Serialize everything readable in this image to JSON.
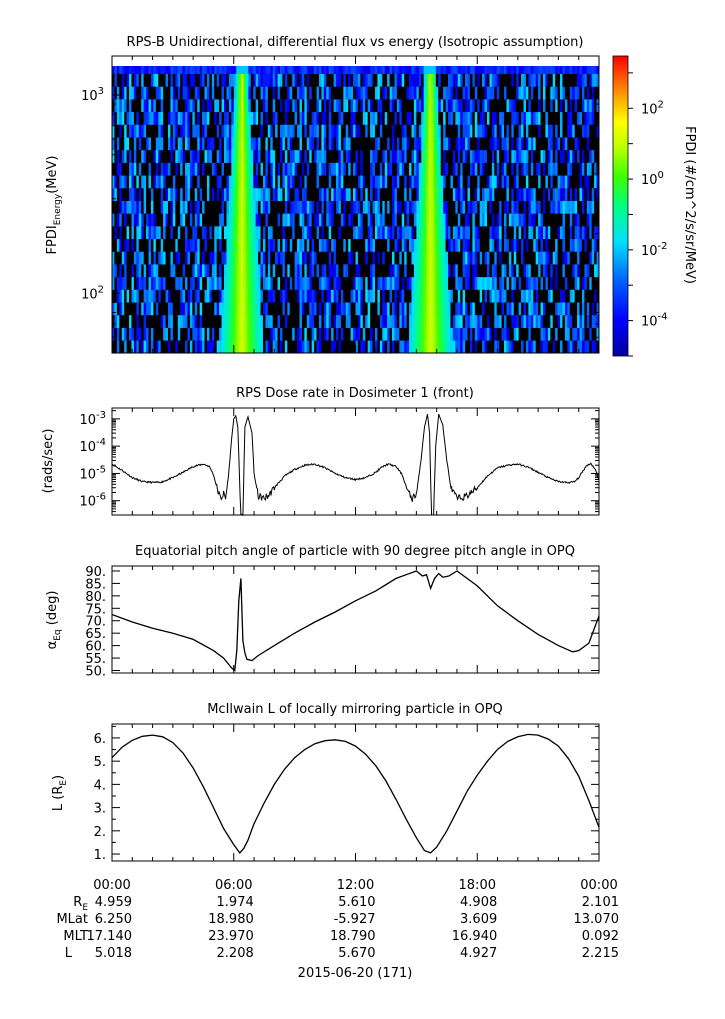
{
  "panels": {
    "spectrogram": {
      "title": "RPS-B  Unidirectional, differential flux vs energy (Isotropic assumption)",
      "ylabel_main": "FPDI",
      "ylabel_sub": "Energy",
      "ylabel_unit": "(MeV)",
      "ytick_labels": [
        {
          "value": 100,
          "base": "10",
          "exp": "2"
        },
        {
          "value": 1000,
          "base": "10",
          "exp": "3"
        }
      ],
      "colorbar": {
        "label": "FPDI (#/cm^2/s/sr/MeV)",
        "tick_labels": [
          {
            "value": 0.0001,
            "base": "10",
            "exp": "-4"
          },
          {
            "value": 0.01,
            "base": "10",
            "exp": "-2"
          },
          {
            "value": 1,
            "base": "10",
            "exp": "0"
          },
          {
            "value": 100,
            "base": "10",
            "exp": "2"
          }
        ]
      }
    },
    "dose": {
      "title": "RPS  Dose rate in Dosimeter 1 (front)",
      "ylabel": "(rads/sec)",
      "ytick_labels": [
        {
          "value": 1e-06,
          "base": "10",
          "exp": "-6"
        },
        {
          "value": 1e-05,
          "base": "10",
          "exp": "-5"
        },
        {
          "value": 0.0001,
          "base": "10",
          "exp": "-4"
        },
        {
          "value": 0.001,
          "base": "10",
          "exp": "-3"
        }
      ]
    },
    "pitch": {
      "title": "Equatorial pitch angle of particle with 90 degree pitch angle in OPQ",
      "ylabel_main": "α",
      "ylabel_sub": "Eq",
      "ylabel_unit": " (deg)",
      "ytick_labels": [
        "50.",
        "55.",
        "60.",
        "65.",
        "70.",
        "75.",
        "80.",
        "85.",
        "90."
      ]
    },
    "lshell": {
      "title": "McIlwain L of locally mirroring particle in OPQ",
      "ylabel_main": "L (R",
      "ylabel_sub": "E",
      "ylabel_end": ")",
      "ytick_labels": [
        "1.",
        "2.",
        "3.",
        "4.",
        "5.",
        "6."
      ]
    }
  },
  "xaxis": {
    "tick_labels": [
      "00:00",
      "06:00",
      "12:00",
      "18:00",
      "00:00"
    ],
    "ephemeris_labels": {
      "re_main": "R",
      "re_sub": "E",
      "mlat": "MLat",
      "mlt": "MLT",
      "l": "L"
    },
    "ephemeris": [
      {
        "re": "4.959",
        "mlat": "6.250",
        "mlt": "17.140",
        "l": "5.018"
      },
      {
        "re": "1.974",
        "mlat": "18.980",
        "mlt": "23.970",
        "l": "2.208"
      },
      {
        "re": "5.610",
        "mlat": "-5.927",
        "mlt": "18.790",
        "l": "5.670"
      },
      {
        "re": "4.908",
        "mlat": "3.609",
        "mlt": "16.940",
        "l": "4.927"
      },
      {
        "re": "2.101",
        "mlat": "13.070",
        "mlt": "0.092",
        "l": "2.215"
      }
    ],
    "date_label": "2015-06-20 (171)"
  },
  "chart_data": [
    {
      "type": "heatmap",
      "title": "RPS-B  Unidirectional, differential flux vs energy (Isotropic assumption)",
      "xlabel": "",
      "ylabel": "FPDI Energy (MeV)",
      "x_hours": [
        0,
        24
      ],
      "ylim": [
        50,
        1400
      ],
      "yscale": "log",
      "colorscale": "rainbow (blue to red)",
      "clim": [
        1e-05,
        3000
      ],
      "enhanced_flux_bands": [
        {
          "center_hour": 6.4,
          "peak": 10,
          "note": "intense flux at all energies around perigee"
        },
        {
          "center_hour": 15.7,
          "peak": 10,
          "note": "intense flux at all energies around perigee"
        }
      ],
      "background": "sparse noisy counts 1e-5 to 1e-2 interleaved with zero (black) cells"
    },
    {
      "type": "line",
      "title": "RPS  Dose rate in Dosimeter 1 (front)",
      "ylabel": "(rads/sec)",
      "yscale": "log",
      "ylim": [
        3e-07,
        0.0025
      ],
      "x": [
        0,
        0.5,
        1.0,
        1.5,
        2.0,
        2.3,
        2.5,
        3.0,
        3.5,
        4.0,
        4.5,
        4.8,
        5.0,
        5.2,
        5.35,
        5.5,
        5.6,
        5.75,
        5.9,
        6.0,
        6.1,
        6.2,
        6.35,
        6.45,
        6.55,
        6.7,
        6.9,
        7.0,
        7.2,
        7.5,
        7.7,
        8.0,
        8.5,
        9,
        9.5,
        10,
        10.5,
        11,
        11.5,
        12,
        12.5,
        13,
        13.3,
        13.6,
        14.0,
        14.3,
        14.6,
        14.8,
        15.0,
        15.2,
        15.4,
        15.55,
        15.65,
        15.75,
        15.85,
        15.95,
        16.1,
        16.3,
        16.5,
        16.7,
        17.0,
        17.5,
        18.0,
        18.5,
        19.0,
        19.5,
        20.0,
        20.5,
        21.0,
        21.5,
        22.0,
        22.5,
        22.8,
        23.0,
        23.2,
        23.4,
        23.6,
        23.8,
        24.0
      ],
      "y": [
        2.2e-05,
        1.3e-05,
        7e-06,
        5e-06,
        4.7e-06,
        4.7e-06,
        5e-06,
        7e-06,
        1.1e-05,
        1.8e-05,
        2.2e-05,
        1.8e-05,
        9e-06,
        2.5e-06,
        1.2e-06,
        1.8e-06,
        1.2e-06,
        1e-05,
        0.0002,
        0.001,
        0.0013,
        0.0005,
        3e-07,
        3e-07,
        0.0005,
        0.0012,
        0.0003,
        1e-05,
        1.5e-06,
        1.2e-06,
        1.5e-06,
        3e-06,
        8e-06,
        1.4e-05,
        2e-05,
        2.2e-05,
        1.6e-05,
        1e-05,
        7e-06,
        6e-06,
        7e-06,
        1.1e-05,
        1.7e-05,
        2.2e-05,
        1.8e-05,
        9e-06,
        2e-06,
        1.2e-06,
        1.8e-06,
        2e-05,
        0.0005,
        0.0015,
        0.0003,
        3e-07,
        3e-07,
        0.0001,
        0.0015,
        0.0006,
        3e-05,
        3e-06,
        1.2e-06,
        1.5e-06,
        3e-06,
        8e-06,
        1.6e-05,
        2e-05,
        2.2e-05,
        1.7e-05,
        1.1e-05,
        7e-06,
        5e-06,
        4.6e-06,
        5e-06,
        7e-06,
        1.2e-05,
        2e-05,
        2.3e-05,
        1.5e-05,
        6e-06
      ]
    },
    {
      "type": "line",
      "title": "Equatorial pitch angle of particle with 90 degree pitch angle in OPQ",
      "ylabel": "αEq (deg)",
      "ylim": [
        49,
        92
      ],
      "x": [
        0,
        1,
        2,
        3,
        4,
        5,
        5.5,
        5.9,
        6.05,
        6.15,
        6.25,
        6.35,
        6.45,
        6.55,
        6.65,
        6.9,
        7.2,
        8,
        9,
        10,
        11,
        12,
        13,
        14,
        14.5,
        15.0,
        15.3,
        15.5,
        15.7,
        15.9,
        16.1,
        16.3,
        16.6,
        17,
        18,
        19,
        20,
        21,
        22,
        22.7,
        23,
        23.5,
        24
      ],
      "y": [
        72.5,
        69.5,
        67,
        65,
        62.5,
        58,
        55,
        51,
        50,
        58,
        78,
        87,
        62,
        57,
        54.5,
        54,
        56,
        60,
        65,
        69.5,
        73.5,
        78,
        82,
        87,
        88.5,
        90,
        88,
        88.5,
        83,
        87,
        89,
        87.5,
        88,
        90,
        84,
        76,
        70,
        64.5,
        60,
        57.5,
        58,
        61,
        72
      ]
    },
    {
      "type": "line",
      "title": "McIlwain L of locally mirroring particle in OPQ",
      "ylabel": "L (RE)",
      "ylim": [
        0.7,
        6.6
      ],
      "x": [
        0,
        0.5,
        1,
        1.5,
        2,
        2.5,
        3,
        3.5,
        4,
        4.5,
        5,
        5.5,
        6,
        6.3,
        6.5,
        6.7,
        7,
        7.5,
        8,
        8.5,
        9,
        9.5,
        10,
        10.5,
        11,
        11.5,
        12,
        12.5,
        13,
        13.5,
        14,
        14.5,
        15,
        15.4,
        15.7,
        16,
        16.5,
        17,
        17.5,
        18,
        18.5,
        19,
        19.5,
        20,
        20.5,
        21,
        21.5,
        22,
        22.5,
        23,
        23.5,
        24
      ],
      "y": [
        5.15,
        5.6,
        5.9,
        6.07,
        6.12,
        6.05,
        5.8,
        5.35,
        4.7,
        3.9,
        3.0,
        2.1,
        1.4,
        1.05,
        1.25,
        1.6,
        2.3,
        3.2,
        4.0,
        4.65,
        5.15,
        5.5,
        5.75,
        5.88,
        5.92,
        5.85,
        5.65,
        5.3,
        4.8,
        4.15,
        3.35,
        2.5,
        1.7,
        1.15,
        1.05,
        1.3,
        2.0,
        2.85,
        3.7,
        4.4,
        5.0,
        5.5,
        5.85,
        6.05,
        6.15,
        6.12,
        5.95,
        5.65,
        5.1,
        4.35,
        3.3,
        2.15
      ]
    }
  ]
}
